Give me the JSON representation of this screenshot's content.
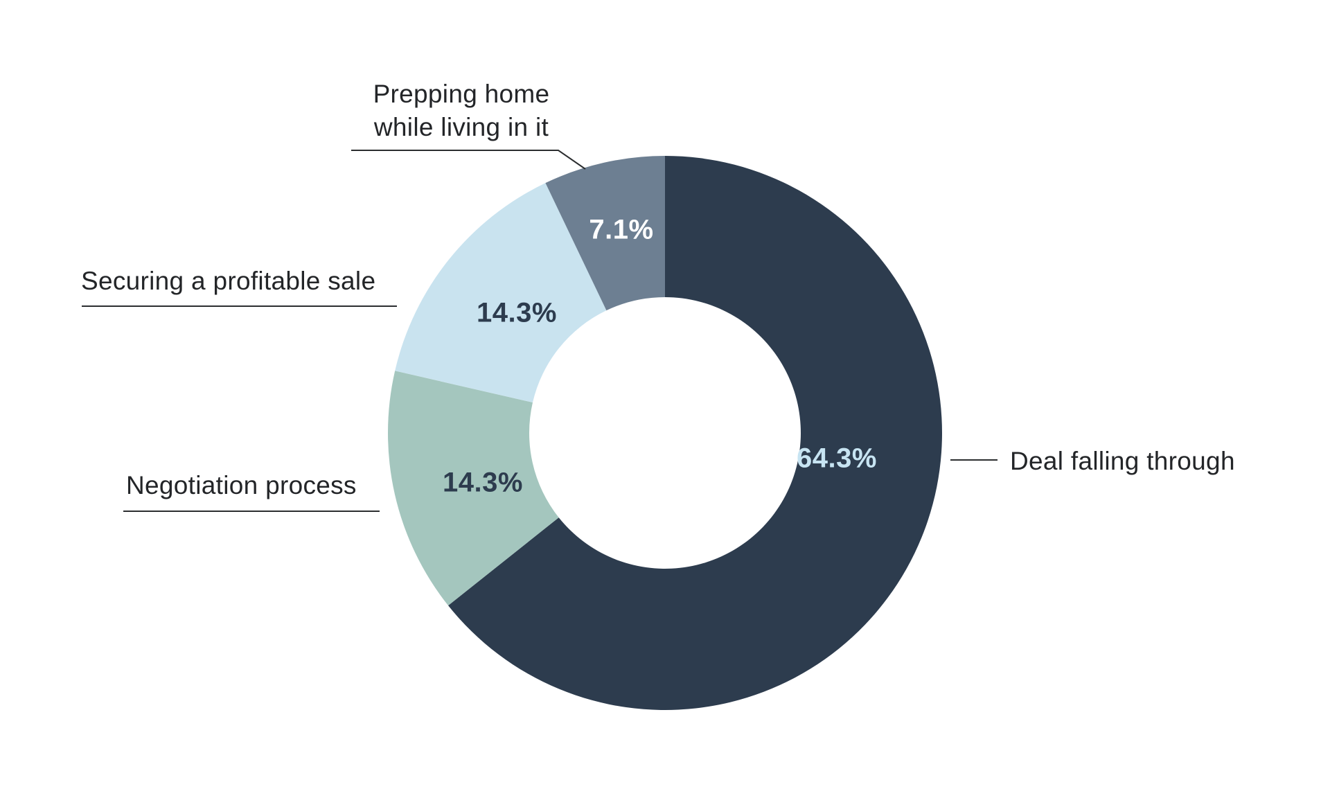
{
  "chart_data": {
    "type": "pie",
    "variant": "donut",
    "title": "",
    "unit": "%",
    "direction": "clockwise",
    "start_angle_deg": 0,
    "grid": false,
    "legend_position": "outside-callouts",
    "hole_ratio": 0.49,
    "background_color": "#ffffff",
    "callout_line_color": "#2b2d2f",
    "label_text_color": "#232528",
    "slices": [
      {
        "label": "Deal falling through",
        "value": 64.3,
        "pct": "64.3%",
        "color": "#2d3c4e",
        "pct_text_color": "#c7e4f2"
      },
      {
        "label": "Negotiation process",
        "value": 14.3,
        "pct": "14.3%",
        "color": "#a4c6be",
        "pct_text_color": "#2d3c4e"
      },
      {
        "label": "Securing a profitable sale",
        "value": 14.3,
        "pct": "14.3%",
        "color": "#c9e3ef",
        "pct_text_color": "#2d3c4e"
      },
      {
        "label": "Prepping home while living in it",
        "value": 7.1,
        "pct": "7.1%",
        "color": "#6d7f92",
        "pct_text_color": "#ffffff"
      }
    ]
  }
}
